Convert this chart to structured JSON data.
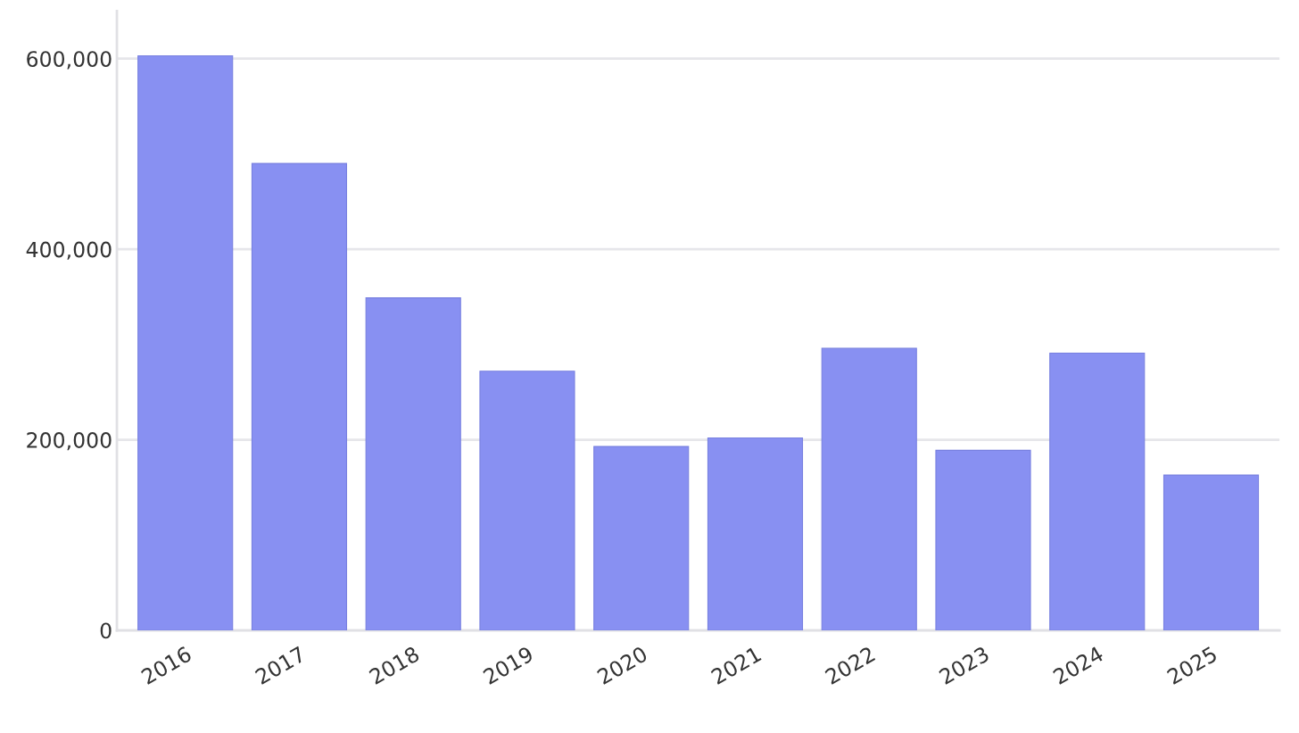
{
  "chart_data": {
    "type": "bar",
    "categories": [
      "2016",
      "2017",
      "2018",
      "2019",
      "2020",
      "2021",
      "2022",
      "2023",
      "2024",
      "2025"
    ],
    "values": [
      603000,
      490000,
      349000,
      272000,
      193000,
      202000,
      296000,
      189000,
      291000,
      163000
    ],
    "color": "#8890f2",
    "ylim": [
      0,
      650000
    ],
    "yticks": [
      0,
      {
        "value": 200000,
        "label": "200,000"
      },
      {
        "value": 400000,
        "label": "400,000"
      },
      {
        "value": 600000,
        "label": "600,000"
      }
    ],
    "grid": "y"
  }
}
